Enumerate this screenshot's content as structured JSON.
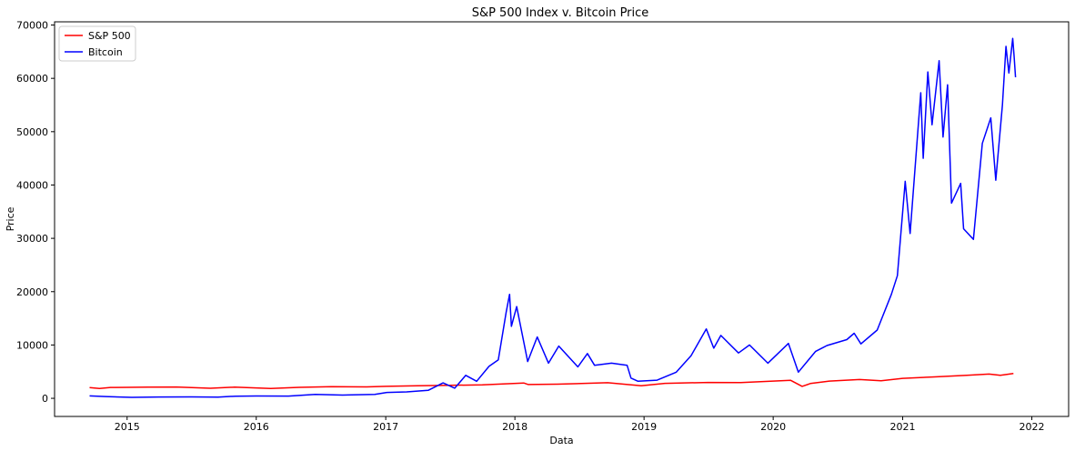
{
  "chart_data": {
    "type": "line",
    "title": "S&P 500 Index v. Bitcoin Price",
    "xlabel": "Data",
    "ylabel": "Price",
    "x_type": "date",
    "xlim": [
      "2014-06-10",
      "2022-04-15"
    ],
    "ylim": [
      -3400,
      70600
    ],
    "x_ticks": [
      "2015-01-01",
      "2016-01-01",
      "2017-01-01",
      "2018-01-01",
      "2019-01-01",
      "2020-01-01",
      "2021-01-01",
      "2022-01-01"
    ],
    "x_tick_labels": [
      "2015",
      "2016",
      "2017",
      "2018",
      "2019",
      "2020",
      "2021",
      "2022"
    ],
    "y_ticks": [
      0,
      10000,
      20000,
      30000,
      40000,
      50000,
      60000,
      70000
    ],
    "y_tick_labels": [
      "0",
      "10000",
      "20000",
      "30000",
      "40000",
      "50000",
      "60000",
      "70000"
    ],
    "grid": false,
    "legend_position": "top-left",
    "series": [
      {
        "name": "S&P 500",
        "color": "#ff0000",
        "points": [
          [
            "2014-09-17",
            2000
          ],
          [
            "2014-10-15",
            1860
          ],
          [
            "2014-11-15",
            2040
          ],
          [
            "2014-12-31",
            2060
          ],
          [
            "2015-03-01",
            2100
          ],
          [
            "2015-05-20",
            2120
          ],
          [
            "2015-08-24",
            1890
          ],
          [
            "2015-11-01",
            2090
          ],
          [
            "2016-02-11",
            1830
          ],
          [
            "2016-05-01",
            2060
          ],
          [
            "2016-08-01",
            2170
          ],
          [
            "2016-11-08",
            2140
          ],
          [
            "2017-01-01",
            2240
          ],
          [
            "2017-04-01",
            2360
          ],
          [
            "2017-07-01",
            2430
          ],
          [
            "2017-10-01",
            2530
          ],
          [
            "2018-01-26",
            2870
          ],
          [
            "2018-02-08",
            2580
          ],
          [
            "2018-05-01",
            2650
          ],
          [
            "2018-09-20",
            2930
          ],
          [
            "2018-12-24",
            2350
          ],
          [
            "2019-03-01",
            2800
          ],
          [
            "2019-07-01",
            2980
          ],
          [
            "2019-10-01",
            2940
          ],
          [
            "2020-01-01",
            3230
          ],
          [
            "2020-02-19",
            3390
          ],
          [
            "2020-03-23",
            2240
          ],
          [
            "2020-04-15",
            2780
          ],
          [
            "2020-06-08",
            3230
          ],
          [
            "2020-09-01",
            3530
          ],
          [
            "2020-11-01",
            3300
          ],
          [
            "2021-01-01",
            3750
          ],
          [
            "2021-04-01",
            4020
          ],
          [
            "2021-07-01",
            4320
          ],
          [
            "2021-09-02",
            4540
          ],
          [
            "2021-10-04",
            4300
          ],
          [
            "2021-11-10",
            4650
          ]
        ]
      },
      {
        "name": "Bitcoin",
        "color": "#0000ff",
        "points": [
          [
            "2014-09-17",
            460
          ],
          [
            "2014-11-01",
            330
          ],
          [
            "2015-01-14",
            180
          ],
          [
            "2015-04-01",
            250
          ],
          [
            "2015-07-01",
            260
          ],
          [
            "2015-09-15",
            230
          ],
          [
            "2015-11-04",
            400
          ],
          [
            "2016-01-01",
            430
          ],
          [
            "2016-04-01",
            420
          ],
          [
            "2016-06-16",
            750
          ],
          [
            "2016-09-01",
            600
          ],
          [
            "2016-12-01",
            750
          ],
          [
            "2017-01-04",
            1100
          ],
          [
            "2017-03-01",
            1200
          ],
          [
            "2017-05-01",
            1500
          ],
          [
            "2017-06-12",
            2900
          ],
          [
            "2017-07-15",
            1900
          ],
          [
            "2017-08-15",
            4300
          ],
          [
            "2017-09-15",
            3200
          ],
          [
            "2017-10-20",
            6000
          ],
          [
            "2017-11-15",
            7200
          ],
          [
            "2017-12-07",
            16000
          ],
          [
            "2017-12-17",
            19500
          ],
          [
            "2017-12-22",
            13500
          ],
          [
            "2018-01-06",
            17200
          ],
          [
            "2018-02-06",
            6900
          ],
          [
            "2018-03-05",
            11500
          ],
          [
            "2018-04-06",
            6600
          ],
          [
            "2018-05-05",
            9800
          ],
          [
            "2018-06-28",
            5900
          ],
          [
            "2018-07-25",
            8400
          ],
          [
            "2018-08-14",
            6200
          ],
          [
            "2018-10-01",
            6600
          ],
          [
            "2018-11-14",
            6200
          ],
          [
            "2018-11-25",
            3800
          ],
          [
            "2018-12-15",
            3200
          ],
          [
            "2019-02-07",
            3400
          ],
          [
            "2019-04-02",
            4900
          ],
          [
            "2019-05-14",
            8000
          ],
          [
            "2019-06-26",
            13000
          ],
          [
            "2019-07-17",
            9400
          ],
          [
            "2019-08-06",
            11800
          ],
          [
            "2019-09-25",
            8500
          ],
          [
            "2019-10-26",
            10000
          ],
          [
            "2019-12-17",
            6600
          ],
          [
            "2020-02-13",
            10300
          ],
          [
            "2020-03-12",
            4900
          ],
          [
            "2020-04-30",
            8800
          ],
          [
            "2020-06-01",
            9900
          ],
          [
            "2020-07-27",
            11000
          ],
          [
            "2020-08-17",
            12200
          ],
          [
            "2020-09-05",
            10200
          ],
          [
            "2020-10-21",
            12800
          ],
          [
            "2020-11-30",
            19500
          ],
          [
            "2020-12-17",
            23000
          ],
          [
            "2021-01-08",
            40700
          ],
          [
            "2021-01-22",
            30900
          ],
          [
            "2021-02-21",
            57300
          ],
          [
            "2021-02-28",
            45000
          ],
          [
            "2021-03-13",
            61200
          ],
          [
            "2021-03-25",
            51300
          ],
          [
            "2021-04-14",
            63300
          ],
          [
            "2021-04-25",
            49000
          ],
          [
            "2021-05-08",
            58800
          ],
          [
            "2021-05-19",
            36600
          ],
          [
            "2021-06-14",
            40300
          ],
          [
            "2021-06-22",
            31800
          ],
          [
            "2021-07-20",
            29800
          ],
          [
            "2021-08-14",
            47800
          ],
          [
            "2021-09-07",
            52600
          ],
          [
            "2021-09-21",
            40900
          ],
          [
            "2021-10-10",
            55000
          ],
          [
            "2021-10-20",
            66000
          ],
          [
            "2021-10-28",
            61000
          ],
          [
            "2021-11-08",
            67500
          ],
          [
            "2021-11-12",
            64000
          ],
          [
            "2021-11-16",
            60200
          ]
        ]
      }
    ]
  }
}
